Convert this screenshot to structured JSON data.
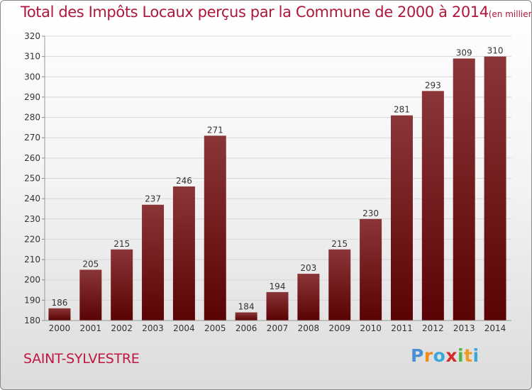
{
  "title": "Total des Impôts Locaux perçus par la Commune de 2000 à 2014",
  "subtitle": "(en milliers d'€)",
  "commune": "SAINT-SYLVESTRE",
  "logo": {
    "letters": [
      "P",
      "r",
      "o",
      "x",
      "i",
      "t",
      "i"
    ],
    "colors": [
      "#4a8fd3",
      "#f08a1c",
      "#3aa7d8",
      "#d42c2c",
      "#4fb548",
      "#ef9a25",
      "#3aa7d8"
    ]
  },
  "colors": {
    "bar_top": "#8a3538",
    "bar_bottom": "#5a0304",
    "text": "#b0173b"
  },
  "chart_data": {
    "type": "bar",
    "title": "Total des Impôts Locaux perçus par la Commune de 2000 à 2014",
    "subtitle": "(en milliers d'€)",
    "categories": [
      "2000",
      "2001",
      "2002",
      "2003",
      "2004",
      "2005",
      "2006",
      "2007",
      "2008",
      "2009",
      "2010",
      "2011",
      "2012",
      "2013",
      "2014"
    ],
    "values": [
      186,
      205,
      215,
      237,
      246,
      271,
      184,
      194,
      203,
      215,
      230,
      281,
      293,
      309,
      310
    ],
    "ylim": [
      180,
      320
    ],
    "yticks": [
      180,
      190,
      200,
      210,
      220,
      230,
      240,
      250,
      260,
      270,
      280,
      290,
      300,
      310,
      320
    ],
    "grid": true,
    "data_labels": true
  }
}
